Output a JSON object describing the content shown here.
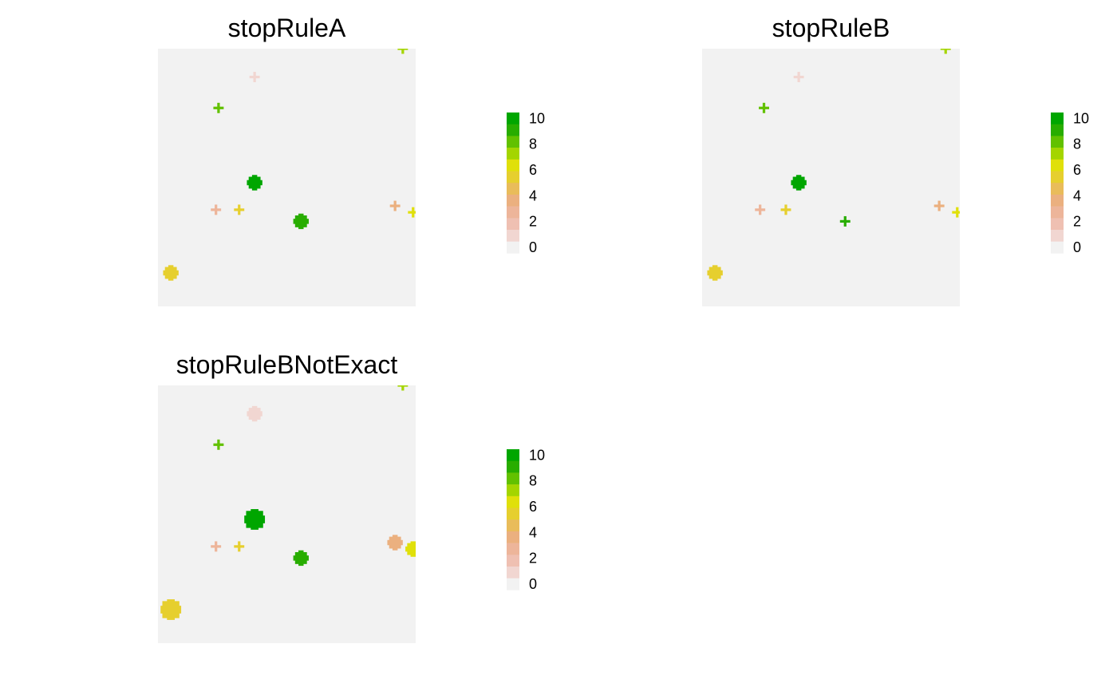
{
  "chart_data": [
    {
      "type": "heatmap",
      "title": "stopRuleA",
      "xlim": [
        0,
        100
      ],
      "ylim": [
        0,
        100
      ],
      "grid": false,
      "legend": "right",
      "legend_ticks": [
        0,
        2,
        4,
        6,
        8,
        10
      ],
      "clusters": [
        {
          "x": 95,
          "y": 100,
          "value": 7,
          "size": 1
        },
        {
          "x": 37.5,
          "y": 89,
          "value": 1,
          "size": 1
        },
        {
          "x": 23.5,
          "y": 77,
          "value": 8,
          "size": 1
        },
        {
          "x": 37.5,
          "y": 48,
          "value": 10,
          "size": 2
        },
        {
          "x": 22.5,
          "y": 37.5,
          "value": 3,
          "size": 1
        },
        {
          "x": 31.5,
          "y": 37.5,
          "value": 5,
          "size": 1
        },
        {
          "x": 55.5,
          "y": 33,
          "value": 9,
          "size": 2
        },
        {
          "x": 92,
          "y": 39,
          "value": 4,
          "size": 1
        },
        {
          "x": 99,
          "y": 36.5,
          "value": 6,
          "size": 1
        },
        {
          "x": 5,
          "y": 13,
          "value": 5,
          "size": 2
        }
      ]
    },
    {
      "type": "heatmap",
      "title": "stopRuleB",
      "xlim": [
        0,
        100
      ],
      "ylim": [
        0,
        100
      ],
      "grid": false,
      "legend": "right",
      "legend_ticks": [
        0,
        2,
        4,
        6,
        8,
        10
      ],
      "clusters": [
        {
          "x": 94.5,
          "y": 100,
          "value": 7,
          "size": 1
        },
        {
          "x": 37.5,
          "y": 89,
          "value": 1,
          "size": 1
        },
        {
          "x": 24,
          "y": 77,
          "value": 8,
          "size": 1
        },
        {
          "x": 37.5,
          "y": 48,
          "value": 10,
          "size": 2
        },
        {
          "x": 22.5,
          "y": 37.5,
          "value": 3,
          "size": 1
        },
        {
          "x": 32.5,
          "y": 37.5,
          "value": 5,
          "size": 1
        },
        {
          "x": 55.5,
          "y": 33,
          "value": 9,
          "size": 1
        },
        {
          "x": 92,
          "y": 39,
          "value": 4,
          "size": 1
        },
        {
          "x": 99,
          "y": 36.5,
          "value": 6,
          "size": 1
        },
        {
          "x": 5,
          "y": 13,
          "value": 5,
          "size": 2
        }
      ]
    },
    {
      "type": "heatmap",
      "title": "stopRuleBNotExact",
      "xlim": [
        0,
        100
      ],
      "ylim": [
        0,
        100
      ],
      "grid": false,
      "legend": "right",
      "legend_ticks": [
        0,
        2,
        4,
        6,
        8,
        10
      ],
      "clusters": [
        {
          "x": 95,
          "y": 100,
          "value": 7,
          "size": 1
        },
        {
          "x": 37.5,
          "y": 89,
          "value": 1,
          "size": 2
        },
        {
          "x": 23.5,
          "y": 77,
          "value": 8,
          "size": 1
        },
        {
          "x": 37.5,
          "y": 48,
          "value": 10,
          "size": 3
        },
        {
          "x": 22.5,
          "y": 37.5,
          "value": 3,
          "size": 1
        },
        {
          "x": 31.5,
          "y": 37.5,
          "value": 5,
          "size": 1
        },
        {
          "x": 55.5,
          "y": 33,
          "value": 9,
          "size": 2
        },
        {
          "x": 92,
          "y": 39,
          "value": 4,
          "size": 2
        },
        {
          "x": 99,
          "y": 36.5,
          "value": 6,
          "size": 2
        },
        {
          "x": 5,
          "y": 13,
          "value": 5,
          "size": 3
        }
      ]
    }
  ],
  "palette": {
    "background": "#f2f2f2",
    "levels": [
      "#f2f2f2",
      "#f1d6d1",
      "#efc0b2",
      "#edb59a",
      "#ebb07f",
      "#e9bc5a",
      "#e6cf2e",
      "#e0e00a",
      "#a4d500",
      "#62c100",
      "#28ad00",
      "#00a600"
    ]
  }
}
